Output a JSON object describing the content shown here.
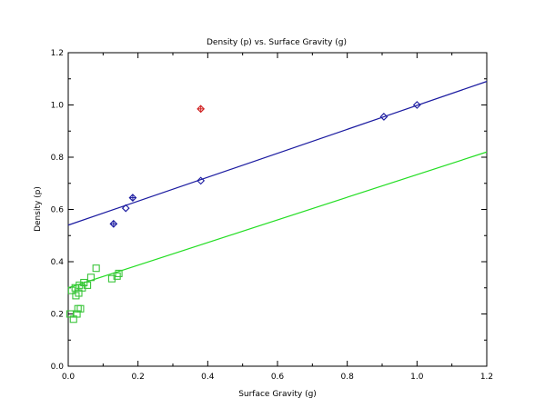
{
  "chart_data": {
    "type": "scatter",
    "title": "Density (p) vs. Surface Gravity (g)",
    "xlabel": "Surface Gravity (g)",
    "ylabel": "Density (p)",
    "xlim": [
      0,
      1.2
    ],
    "ylim": [
      0,
      1.2
    ],
    "x_ticks": [
      "0.0",
      "0.2",
      "0.4",
      "0.6",
      "0.8",
      "1.0",
      "1.2"
    ],
    "y_ticks": [
      "0.0",
      "0.2",
      "0.4",
      "0.6",
      "0.8",
      "1.0",
      "1.2"
    ],
    "grid": false,
    "series": [
      {
        "marker": "diamond",
        "color": "#1a1aa0",
        "points": [
          [
            0.165,
            0.605
          ],
          [
            0.38,
            0.71
          ],
          [
            0.905,
            0.955
          ],
          [
            1.0,
            1.0
          ]
        ]
      },
      {
        "marker": "diamond-plus",
        "color": "#1a1aa0",
        "points": [
          [
            0.13,
            0.545
          ],
          [
            0.185,
            0.645
          ]
        ]
      },
      {
        "marker": "diamond-plus",
        "color": "#d02020",
        "points": [
          [
            0.38,
            0.985
          ]
        ]
      },
      {
        "marker": "square",
        "color": "#39c539",
        "points": [
          [
            0.005,
            0.2
          ],
          [
            0.01,
            0.29
          ],
          [
            0.015,
            0.18
          ],
          [
            0.02,
            0.3
          ],
          [
            0.022,
            0.27
          ],
          [
            0.025,
            0.2
          ],
          [
            0.028,
            0.22
          ],
          [
            0.03,
            0.28
          ],
          [
            0.032,
            0.31
          ],
          [
            0.035,
            0.22
          ],
          [
            0.04,
            0.3
          ],
          [
            0.045,
            0.32
          ],
          [
            0.055,
            0.31
          ],
          [
            0.065,
            0.34
          ],
          [
            0.08,
            0.375
          ],
          [
            0.125,
            0.335
          ],
          [
            0.14,
            0.345
          ],
          [
            0.145,
            0.355
          ]
        ]
      }
    ],
    "fit_lines": [
      {
        "color": "#1a1aa0",
        "x": [
          0,
          1.2
        ],
        "y": [
          0.54,
          1.09
        ]
      },
      {
        "color": "#22dd22",
        "x": [
          0,
          1.2
        ],
        "y": [
          0.3,
          0.82
        ]
      }
    ]
  }
}
